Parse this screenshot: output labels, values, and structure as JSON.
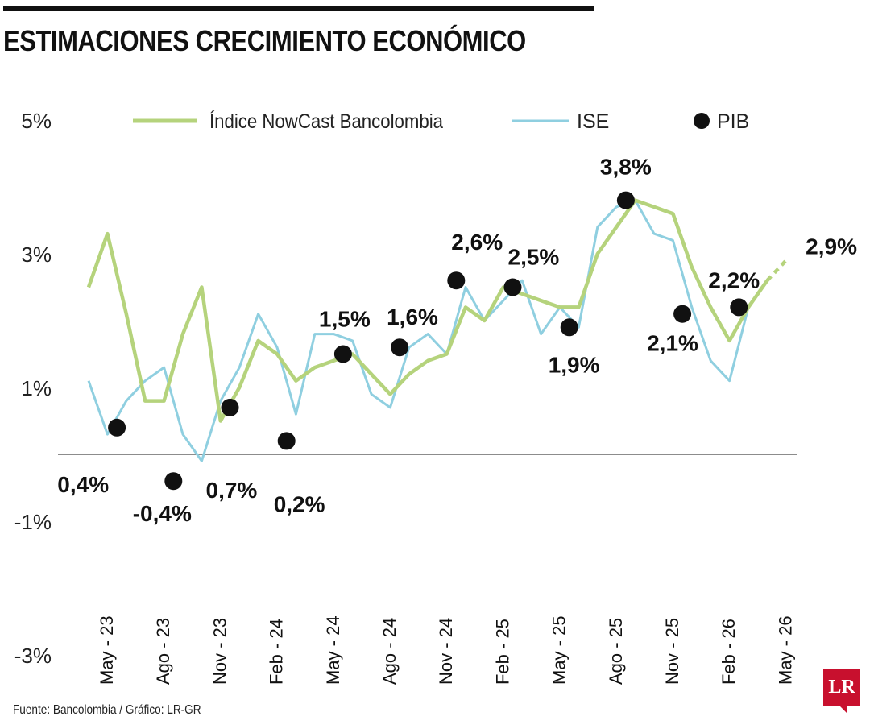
{
  "title": "ESTIMACIONES CRECIMIENTO ECONÓMICO",
  "source": "Fuente: Bancolombia / Gráfico: LR-GR",
  "logo_text": "LR",
  "colors": {
    "nowcast": "#b5d37c",
    "ise": "#8fcfe0",
    "pib": "#111111",
    "accent": "#c8102e"
  },
  "chart_data": {
    "type": "line",
    "ylim": [
      -3,
      5
    ],
    "yticks": [
      "5%",
      "3%",
      "1%",
      "-1%",
      "-3%"
    ],
    "ytick_values": [
      5,
      3,
      1,
      -1,
      -3
    ],
    "x_tick_labels": [
      "May - 23",
      "Ago - 23",
      "Nov - 23",
      "Feb - 24",
      "May - 24",
      "Ago - 24",
      "Nov - 24",
      "Feb - 25",
      "May - 25",
      "Ago - 25",
      "Nov - 25",
      "Feb - 26",
      "May - 26"
    ],
    "x_start": "May - 23",
    "x_end": "May - 26",
    "legend": [
      {
        "label": "Índice NowCast Bancolombia",
        "marker": "line",
        "color": "#b5d37c"
      },
      {
        "label": "ISE",
        "marker": "line",
        "color": "#8fcfe0"
      },
      {
        "label": "PIB",
        "marker": "dot",
        "color": "#111111"
      }
    ],
    "series": [
      {
        "name": "Índice NowCast Bancolombia",
        "values": [
          2.5,
          3.3,
          2.1,
          0.8,
          0.8,
          1.8,
          2.5,
          0.5,
          1.0,
          1.7,
          1.5,
          1.1,
          1.3,
          1.4,
          1.5,
          1.2,
          0.9,
          1.2,
          1.4,
          1.5,
          2.2,
          2.0,
          2.5,
          2.4,
          2.3,
          2.2,
          2.2,
          3.0,
          3.4,
          3.8,
          3.7,
          3.6,
          2.8,
          2.2,
          1.7,
          2.2,
          2.6
        ],
        "projection": [
          2.6,
          2.9
        ]
      },
      {
        "name": "ISE",
        "values": [
          1.1,
          0.3,
          0.8,
          1.1,
          1.3,
          0.3,
          -0.1,
          0.8,
          1.3,
          2.1,
          1.6,
          0.6,
          1.8,
          1.8,
          1.7,
          0.9,
          0.7,
          1.6,
          1.8,
          1.5,
          2.5,
          2.0,
          2.3,
          2.6,
          1.8,
          2.2,
          1.9,
          3.4,
          3.7,
          3.8,
          3.3,
          3.2,
          2.2,
          1.4,
          1.1,
          2.2
        ]
      }
    ],
    "pib": [
      {
        "x": 1.5,
        "value": 0.4,
        "label": "0,4%"
      },
      {
        "x": 4.5,
        "value": -0.4,
        "label": "-0,4%"
      },
      {
        "x": 7.5,
        "value": 0.7,
        "label": "0,7%"
      },
      {
        "x": 10.5,
        "value": 0.2,
        "label": "0,2%"
      },
      {
        "x": 13.5,
        "value": 1.5,
        "label": "1,5%"
      },
      {
        "x": 16.5,
        "value": 1.6,
        "label": "1,6%"
      },
      {
        "x": 19.5,
        "value": 2.6,
        "label": "2,6%"
      },
      {
        "x": 22.5,
        "value": 2.5,
        "label": "2,5%"
      },
      {
        "x": 25.5,
        "value": 1.9,
        "label": "1,9%"
      },
      {
        "x": 28.5,
        "value": 3.8,
        "label": "3,8%"
      },
      {
        "x": 31.5,
        "value": 2.1,
        "label": "2,1%"
      },
      {
        "x": 34.5,
        "value": 2.2,
        "label": "2,2%"
      }
    ],
    "end_label": "2,9%"
  }
}
